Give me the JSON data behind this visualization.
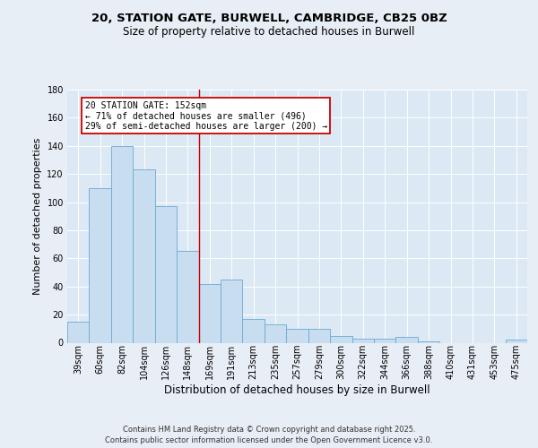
{
  "title1": "20, STATION GATE, BURWELL, CAMBRIDGE, CB25 0BZ",
  "title2": "Size of property relative to detached houses in Burwell",
  "xlabel": "Distribution of detached houses by size in Burwell",
  "ylabel": "Number of detached properties",
  "categories": [
    "39sqm",
    "60sqm",
    "82sqm",
    "104sqm",
    "126sqm",
    "148sqm",
    "169sqm",
    "191sqm",
    "213sqm",
    "235sqm",
    "257sqm",
    "279sqm",
    "300sqm",
    "322sqm",
    "344sqm",
    "366sqm",
    "388sqm",
    "410sqm",
    "431sqm",
    "453sqm",
    "475sqm"
  ],
  "values": [
    15,
    110,
    140,
    123,
    97,
    65,
    42,
    45,
    17,
    13,
    10,
    10,
    5,
    3,
    3,
    4,
    1,
    0,
    0,
    0,
    2
  ],
  "bar_color": "#c8ddf0",
  "bar_edge_color": "#6aaad4",
  "vline_x": 5.5,
  "vline_color": "#cc0000",
  "annotation_text": "20 STATION GATE: 152sqm\n← 71% of detached houses are smaller (496)\n29% of semi-detached houses are larger (200) →",
  "annotation_box_color": "#ffffff",
  "annotation_box_edge": "#cc0000",
  "ylim": [
    0,
    180
  ],
  "yticks": [
    0,
    20,
    40,
    60,
    80,
    100,
    120,
    140,
    160,
    180
  ],
  "footer": "Contains HM Land Registry data © Crown copyright and database right 2025.\nContains public sector information licensed under the Open Government Licence v3.0.",
  "bg_color": "#e8eef5",
  "plot_bg_color": "#dce8f4",
  "title1_fontsize": 9.5,
  "title2_fontsize": 8.5,
  "ylabel_fontsize": 8.0,
  "xlabel_fontsize": 8.5,
  "tick_fontsize": 7.0,
  "annot_fontsize": 7.0,
  "footer_fontsize": 6.0
}
